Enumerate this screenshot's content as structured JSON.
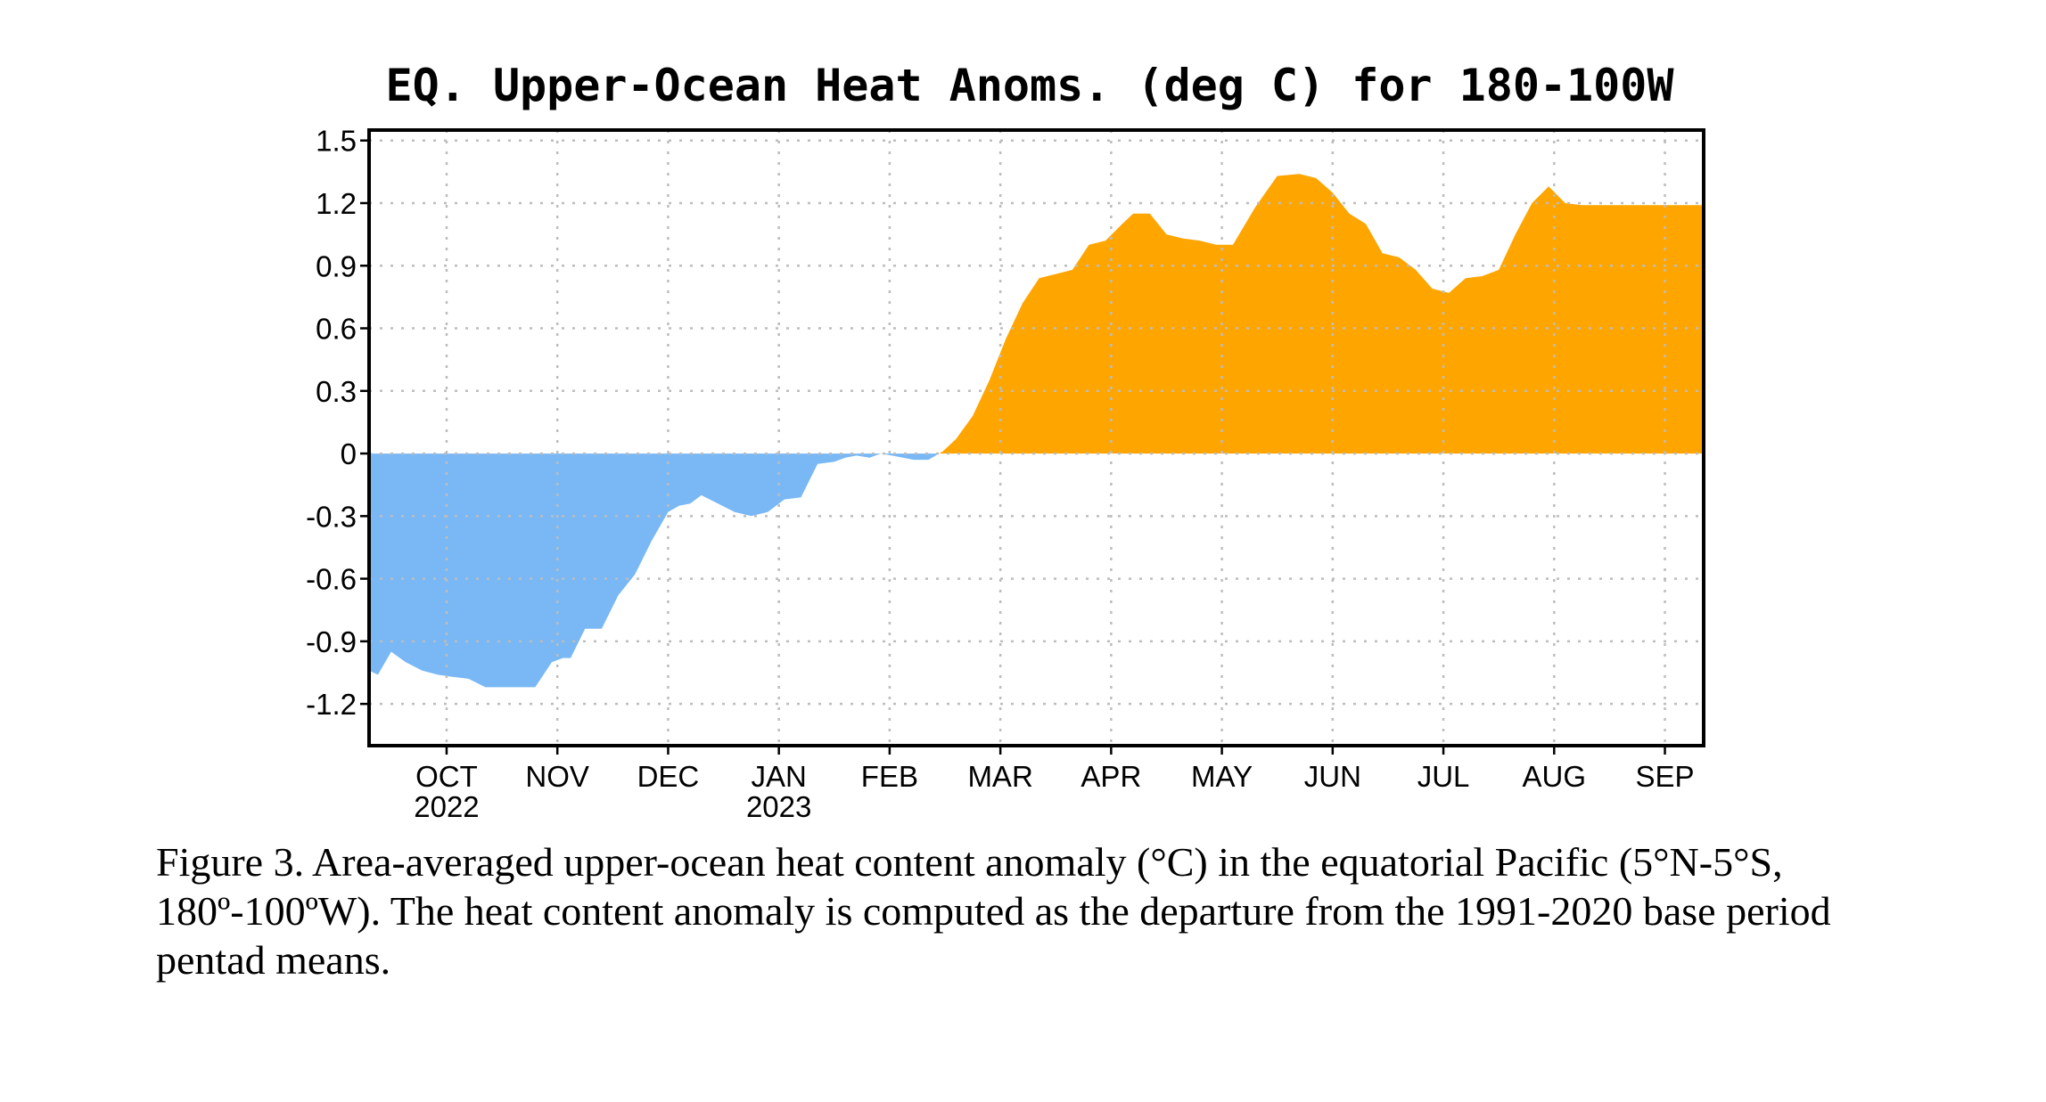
{
  "chart_data": {
    "type": "area",
    "title": "EQ. Upper-Ocean Heat Anoms. (deg C) for 180-100W",
    "xlabel": "",
    "ylabel": "",
    "ylim": [
      -1.4,
      1.55
    ],
    "y_ticks": [
      1.5,
      1.2,
      0.9,
      0.6,
      0.3,
      0,
      -0.3,
      -0.6,
      -0.9,
      -1.2
    ],
    "y_tick_labels": [
      "1.5",
      "1.2",
      "0.9",
      "0.6",
      "0.3",
      "0",
      "-0.3",
      "-0.6",
      "-0.9",
      "-1.2"
    ],
    "x_range_months": [
      8.3,
      20.35
    ],
    "x_ticks": [
      {
        "m": 9,
        "label": "OCT",
        "year": "2022"
      },
      {
        "m": 10,
        "label": "NOV",
        "year": ""
      },
      {
        "m": 11,
        "label": "DEC",
        "year": ""
      },
      {
        "m": 12,
        "label": "JAN",
        "year": "2023"
      },
      {
        "m": 13,
        "label": "FEB",
        "year": ""
      },
      {
        "m": 14,
        "label": "MAR",
        "year": ""
      },
      {
        "m": 15,
        "label": "APR",
        "year": ""
      },
      {
        "m": 16,
        "label": "MAY",
        "year": ""
      },
      {
        "m": 17,
        "label": "JUN",
        "year": ""
      },
      {
        "m": 18,
        "label": "JUL",
        "year": ""
      },
      {
        "m": 19,
        "label": "AUG",
        "year": ""
      },
      {
        "m": 20,
        "label": "SEP",
        "year": ""
      }
    ],
    "grid": true,
    "colors": {
      "positive": "#ffa500",
      "negative": "#79b8f5"
    },
    "series": [
      {
        "x": [
          8.3,
          8.38,
          8.5,
          8.63,
          8.78,
          8.92,
          9.05,
          9.2,
          9.35,
          9.5,
          9.65,
          9.8,
          9.95,
          10.05,
          10.12,
          10.25,
          10.4,
          10.55,
          10.7,
          10.85,
          11.0,
          11.1,
          11.2,
          11.3,
          11.45,
          11.6,
          11.75,
          11.9,
          12.05,
          12.2,
          12.35,
          12.5,
          12.6,
          12.7,
          12.82,
          12.92,
          13.02,
          13.12,
          13.22,
          13.35,
          13.48,
          13.6,
          13.75,
          13.9,
          14.05,
          14.2,
          14.35,
          14.5,
          14.65,
          14.8,
          14.95,
          15.1,
          15.2,
          15.35,
          15.5,
          15.65,
          15.8,
          15.95,
          16.1,
          16.3,
          16.5,
          16.7,
          16.85,
          17.0,
          17.15,
          17.3,
          17.45,
          17.6,
          17.75,
          17.9,
          18.05,
          18.2,
          18.35,
          18.5,
          18.65,
          18.8,
          18.95,
          19.1,
          19.25,
          19.4,
          19.5,
          19.6,
          19.7,
          19.8,
          19.9,
          20.0,
          20.1,
          20.2,
          20.35
        ],
        "y": [
          -1.04,
          -1.06,
          -0.95,
          -1.0,
          -1.04,
          -1.06,
          -1.07,
          -1.08,
          -1.12,
          -1.12,
          -1.12,
          -1.12,
          -1.0,
          -0.98,
          -0.98,
          -0.84,
          -0.84,
          -0.68,
          -0.58,
          -0.42,
          -0.28,
          -0.25,
          -0.24,
          -0.2,
          -0.24,
          -0.28,
          -0.3,
          -0.28,
          -0.22,
          -0.21,
          -0.05,
          -0.04,
          -0.02,
          -0.01,
          -0.02,
          0.0,
          -0.01,
          -0.02,
          -0.03,
          -0.03,
          0.01,
          0.07,
          0.18,
          0.35,
          0.55,
          0.72,
          0.84,
          0.86,
          0.88,
          1.0,
          1.02,
          1.1,
          1.15,
          1.15,
          1.05,
          1.03,
          1.02,
          1.0,
          1.0,
          1.18,
          1.33,
          1.34,
          1.32,
          1.25,
          1.15,
          1.1,
          0.96,
          0.94,
          0.88,
          0.79,
          0.77,
          0.84,
          0.85,
          0.88,
          1.05,
          1.2,
          1.28,
          1.2,
          1.19,
          1.19,
          1.19,
          1.19,
          1.19,
          1.19,
          1.19,
          1.19,
          1.19,
          1.19,
          1.19
        ]
      }
    ]
  },
  "caption": "Figure 3. Area-averaged upper-ocean heat content anomaly (°C) in the equatorial Pacific (5°N-5°S, 180º-100ºW). The heat content anomaly is computed as the departure from the 1991-2020 base period pentad means."
}
